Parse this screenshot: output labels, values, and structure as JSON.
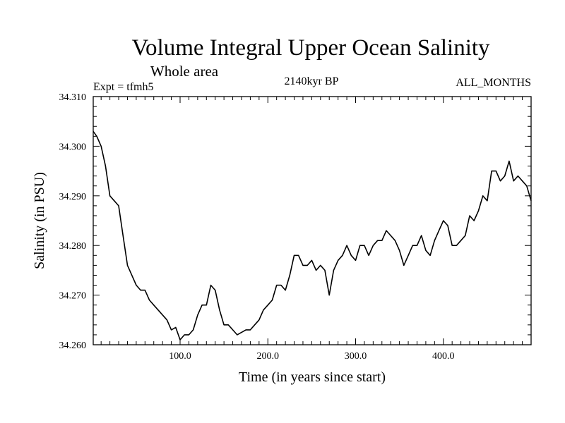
{
  "chart_data": {
    "type": "line",
    "title": "Volume Integral Upper Ocean Salinity",
    "subtitle": "Whole area",
    "annotations": {
      "experiment": "Expt = tfmh5",
      "period": "2140kyr BP",
      "months": "ALL_MONTHS"
    },
    "xlabel": "Time (in years since start)",
    "ylabel": "Salinity (in PSU)",
    "xlim": [
      1,
      500
    ],
    "ylim": [
      34.26,
      34.31
    ],
    "x_ticks": [
      100,
      200,
      300,
      400
    ],
    "x_tick_labels": [
      "100.0",
      "200.0",
      "300.0",
      "400.0"
    ],
    "y_ticks": [
      34.26,
      34.27,
      34.28,
      34.29,
      34.3,
      34.31
    ],
    "y_tick_labels": [
      "34.260",
      "34.270",
      "34.280",
      "34.290",
      "34.300",
      "34.310"
    ],
    "grid": false,
    "series": [
      {
        "name": "Salinity",
        "x": [
          1,
          5,
          10,
          15,
          20,
          25,
          30,
          35,
          40,
          45,
          50,
          55,
          60,
          65,
          70,
          75,
          80,
          85,
          90,
          95,
          100,
          105,
          110,
          115,
          120,
          125,
          130,
          135,
          140,
          145,
          150,
          155,
          160,
          165,
          170,
          175,
          180,
          185,
          190,
          195,
          200,
          205,
          210,
          215,
          220,
          225,
          230,
          235,
          240,
          245,
          250,
          255,
          260,
          265,
          270,
          275,
          280,
          285,
          290,
          295,
          300,
          305,
          310,
          315,
          320,
          325,
          330,
          335,
          340,
          345,
          350,
          355,
          360,
          365,
          370,
          375,
          380,
          385,
          390,
          395,
          400,
          405,
          410,
          415,
          420,
          425,
          430,
          435,
          440,
          445,
          450,
          455,
          460,
          465,
          470,
          475,
          480,
          485,
          490,
          495,
          500
        ],
        "y": [
          34.303,
          34.302,
          34.3,
          34.296,
          34.29,
          34.289,
          34.288,
          34.282,
          34.276,
          34.274,
          34.272,
          34.271,
          34.271,
          34.269,
          34.268,
          34.267,
          34.266,
          34.265,
          34.263,
          34.2635,
          34.261,
          34.262,
          34.262,
          34.263,
          34.266,
          34.268,
          34.268,
          34.272,
          34.271,
          34.267,
          34.264,
          34.264,
          34.263,
          34.262,
          34.2625,
          34.263,
          34.263,
          34.264,
          34.265,
          34.267,
          34.268,
          34.269,
          34.272,
          34.272,
          34.271,
          34.274,
          34.278,
          34.278,
          34.276,
          34.276,
          34.277,
          34.275,
          34.276,
          34.275,
          34.27,
          34.275,
          34.277,
          34.278,
          34.28,
          34.278,
          34.277,
          34.28,
          34.28,
          34.278,
          34.28,
          34.281,
          34.281,
          34.283,
          34.282,
          34.281,
          34.279,
          34.276,
          34.278,
          34.28,
          34.28,
          34.282,
          34.279,
          34.278,
          34.281,
          34.283,
          34.285,
          34.284,
          34.28,
          34.28,
          34.281,
          34.282,
          34.286,
          34.285,
          34.287,
          34.29,
          34.289,
          34.295,
          34.295,
          34.293,
          34.294,
          34.297,
          34.293,
          34.294,
          34.293,
          34.292,
          34.289
        ]
      }
    ]
  }
}
